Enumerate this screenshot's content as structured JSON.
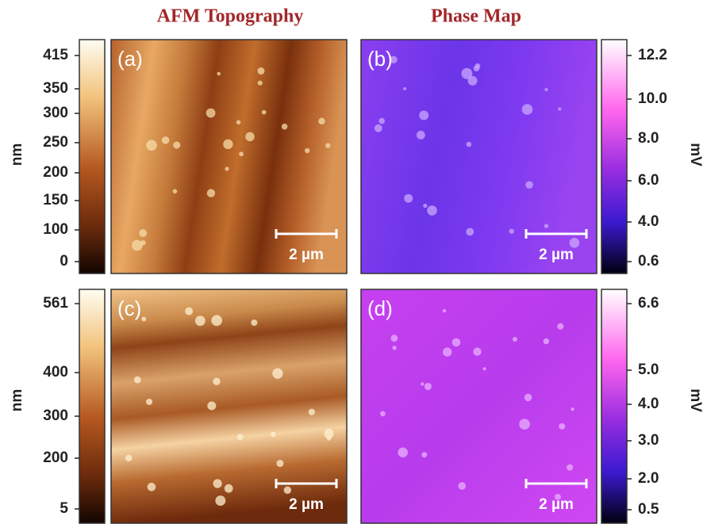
{
  "titles": [
    "AFM Topography",
    "Phase Map"
  ],
  "panels": [
    {
      "label": "(a)",
      "scale_bar": "2 µm"
    },
    {
      "label": "(b)",
      "scale_bar": "2 µm"
    },
    {
      "label": "(c)",
      "scale_bar": "2 µm"
    },
    {
      "label": "(d)",
      "scale_bar": "2 µm"
    }
  ],
  "colorbars": [
    {
      "unit": "nm",
      "ticks": [
        "415",
        "350",
        "300",
        "250",
        "200",
        "150",
        "100",
        "0"
      ]
    },
    {
      "unit": "mV",
      "ticks": [
        "12.2",
        "10.0",
        "8.0",
        "6.0",
        "4.0",
        "0.6"
      ]
    },
    {
      "unit": "nm",
      "ticks": [
        "561",
        "400",
        "300",
        "200",
        "5"
      ]
    },
    {
      "unit": "mV",
      "ticks": [
        "6.6",
        "5.0",
        "4.0",
        "3.0",
        "2.0",
        "0.5"
      ]
    }
  ]
}
